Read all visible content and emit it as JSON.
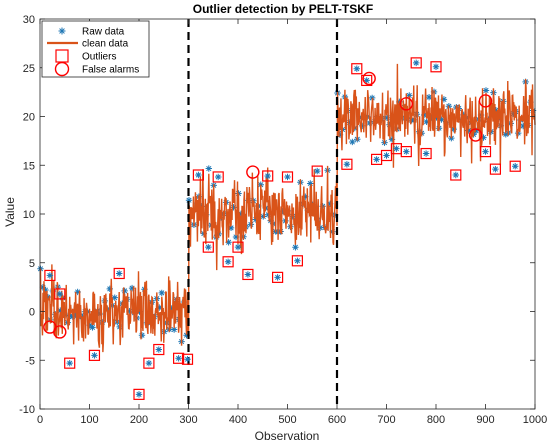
{
  "chart_data": {
    "type": "line",
    "title": "Outlier detection by PELT-TSKF",
    "xlabel": "Observation",
    "ylabel": "Value",
    "xlim": [
      0,
      1000
    ],
    "ylim": [
      -10,
      30
    ],
    "xticks": [
      0,
      100,
      200,
      300,
      400,
      500,
      600,
      700,
      800,
      900,
      1000
    ],
    "yticks": [
      -10,
      -5,
      0,
      5,
      10,
      15,
      20,
      25,
      30
    ],
    "grid": false,
    "legend_position": "top-left",
    "legend": [
      "Raw data",
      "clean data",
      "Outliers",
      "False alarms"
    ],
    "changepoints": [
      300,
      600
    ],
    "segments": [
      {
        "start": 0,
        "end": 300,
        "mean": 0
      },
      {
        "start": 300,
        "end": 600,
        "mean": 10
      },
      {
        "start": 600,
        "end": 1000,
        "mean": 20
      }
    ],
    "series": [
      {
        "name": "Raw data",
        "style": "asterisk markers",
        "color": "#1f77b4"
      },
      {
        "name": "clean data",
        "style": "line",
        "color": "#d95319"
      },
      {
        "name": "Outliers",
        "style": "square markers",
        "color": "#ff0000",
        "points": [
          [
            20,
            3.7
          ],
          [
            40,
            1.8
          ],
          [
            60,
            -5.3
          ],
          [
            110,
            -4.5
          ],
          [
            160,
            3.9
          ],
          [
            200,
            -8.5
          ],
          [
            220,
            -5.3
          ],
          [
            240,
            -3.9
          ],
          [
            280,
            -4.8
          ],
          [
            298,
            -4.9
          ],
          [
            320,
            14.0
          ],
          [
            340,
            6.6
          ],
          [
            360,
            13.8
          ],
          [
            380,
            5.1
          ],
          [
            400,
            6.6
          ],
          [
            420,
            3.8
          ],
          [
            460,
            13.9
          ],
          [
            480,
            3.5
          ],
          [
            500,
            13.8
          ],
          [
            520,
            5.2
          ],
          [
            560,
            14.4
          ],
          [
            620,
            15.1
          ],
          [
            640,
            24.9
          ],
          [
            660,
            23.7
          ],
          [
            680,
            15.6
          ],
          [
            700,
            16.0
          ],
          [
            720,
            16.7
          ],
          [
            740,
            16.4
          ],
          [
            760,
            25.5
          ],
          [
            780,
            16.2
          ],
          [
            800,
            25.1
          ],
          [
            840,
            14.0
          ],
          [
            900,
            16.4
          ],
          [
            920,
            14.6
          ],
          [
            960,
            14.9
          ]
        ]
      },
      {
        "name": "False alarms",
        "style": "circle markers",
        "color": "#ff0000",
        "points": [
          [
            20,
            -1.6
          ],
          [
            40,
            -2.1
          ],
          [
            430,
            14.3
          ],
          [
            665,
            23.9
          ],
          [
            740,
            21.3
          ],
          [
            880,
            18.1
          ],
          [
            900,
            21.6
          ]
        ]
      }
    ]
  }
}
